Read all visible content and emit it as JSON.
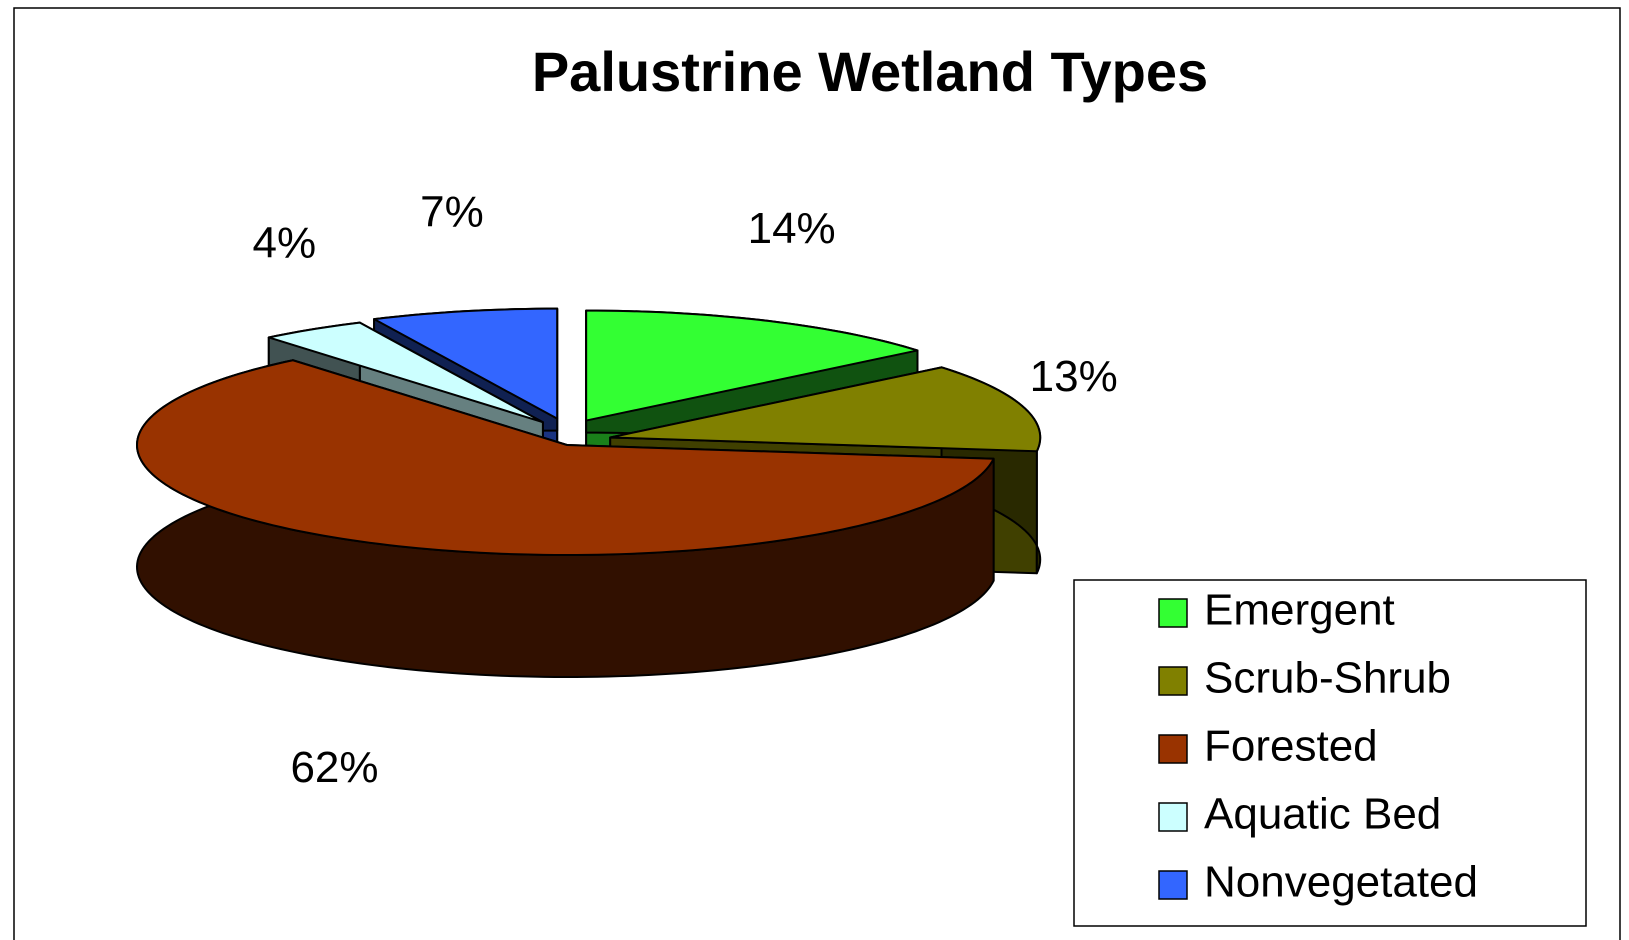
{
  "chart_data": {
    "type": "pie",
    "title": "Palustrine Wetland Types",
    "categories": [
      "Emergent",
      "Scrub-Shrub",
      "Forested",
      "Aquatic Bed",
      "Nonvegetated"
    ],
    "values": [
      14,
      13,
      62,
      4,
      7
    ],
    "value_labels": [
      "14%",
      "13%",
      "62%",
      "4%",
      "7%"
    ],
    "colors": [
      "#33ff33",
      "#808000",
      "#993300",
      "#ccffff",
      "#3366ff"
    ]
  }
}
